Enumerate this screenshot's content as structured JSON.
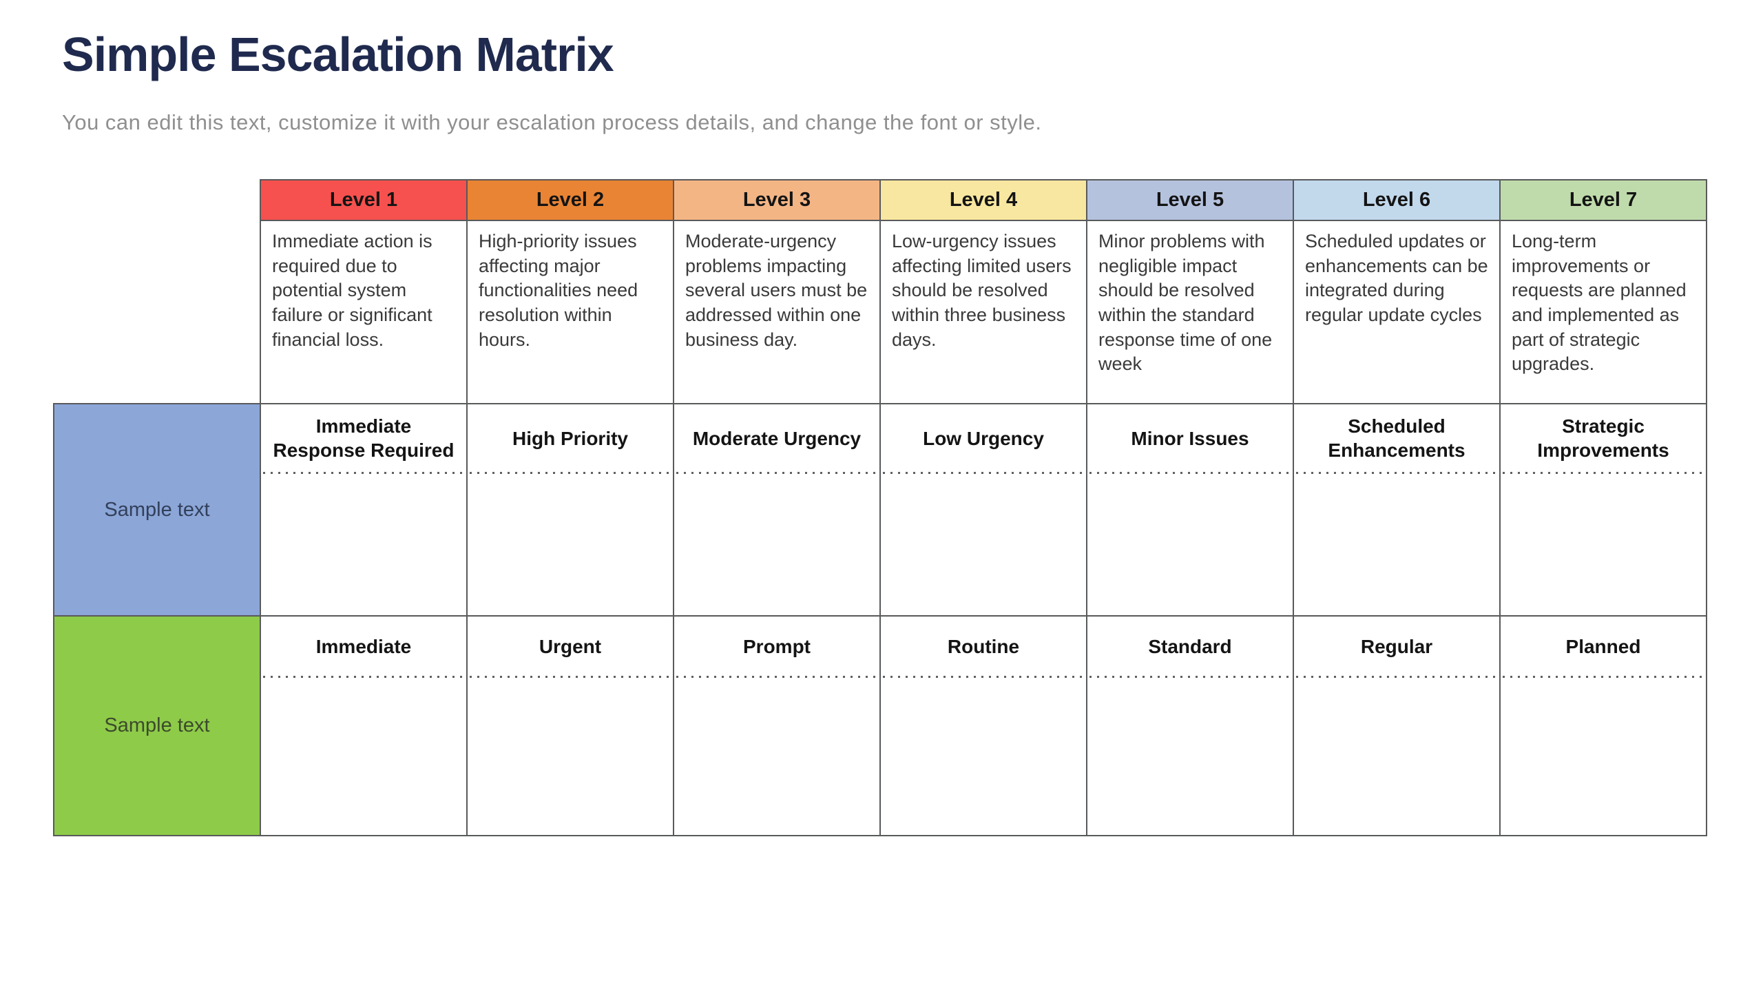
{
  "page": {
    "title": "Simple Escalation Matrix",
    "title_color": "#1f2a4e",
    "subtitle": "You can edit this text, customize it with your escalation process details, and change the font or style."
  },
  "matrix": {
    "columns": [
      {
        "label": "Level 1",
        "color": "#f6514e",
        "description": "Immediate action is required due to potential system failure or significant financial loss."
      },
      {
        "label": "Level 2",
        "color": "#e98434",
        "description": "High-priority issues affecting major functionalities need resolution within hours."
      },
      {
        "label": "Level 3",
        "color": "#f4b585",
        "description": "Moderate-urgency problems impacting several users must be addressed within one business day."
      },
      {
        "label": "Level 4",
        "color": "#f8e7a0",
        "description": "Low-urgency issues affecting limited users should be resolved within three business days."
      },
      {
        "label": "Level 5",
        "color": "#b5c2de",
        "description": "Minor problems with negligible impact should be resolved within the standard response time of one week"
      },
      {
        "label": "Level 6",
        "color": "#c2d9ec",
        "description": "Scheduled updates or enhancements can be integrated during regular update cycles"
      },
      {
        "label": "Level 7",
        "color": "#c0dbab",
        "description": "Long-term improvements or requests are planned and implemented as part of strategic upgrades."
      }
    ],
    "rows": [
      {
        "label": "Sample text",
        "color": "#8ca6d8",
        "text_color": "#32405a",
        "cells": [
          "Immediate Response Required",
          "High Priority",
          "Moderate Urgency",
          "Low Urgency",
          "Minor Issues",
          "Scheduled Enhancements",
          "Strategic Improvements"
        ]
      },
      {
        "label": "Sample text",
        "color": "#8ecb49",
        "text_color": "#3c4a2c",
        "cells": [
          "Immediate",
          "Urgent",
          "Prompt",
          "Routine",
          "Standard",
          "Regular",
          "Planned"
        ]
      }
    ]
  }
}
